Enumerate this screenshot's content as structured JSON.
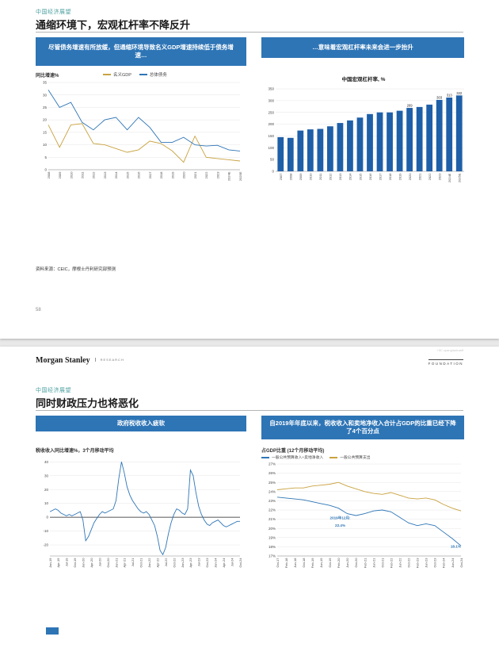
{
  "colors": {
    "banner_blue": "#2E75B6",
    "line_blue": "#2E75B6",
    "line_gold": "#C9A23F",
    "eyebrow_teal": "#4fa0a0",
    "page_bg": "#e9e9e9"
  },
  "slide1": {
    "eyebrow": "中国经济展望",
    "title": "通缩环境下，宏观杠杆率不降反升",
    "left_banner": "尽管债务增速有所放缓，但通缩环境导致名义GDP增速持续低于债务增速…",
    "right_banner": "…意味着宏观杠杆率未来会进一步抬升",
    "source": "资料来源：CEIC，摩根士丹利研究部预测",
    "page_number": "58"
  },
  "slide2": {
    "logo": "Morgan Stanley",
    "logo_sub": "RESEARCH",
    "foundation": "FOUNDATION",
    "watermark": "+5C cpanglautrasff",
    "eyebrow": "中国经济展望",
    "title": "同时财政压力也将恶化",
    "left_banner": "政府税收收入疲软",
    "right_banner": "自2019年年底以来，税收收入和卖地净收入合计占GDP的比重已经下降了4个百分点"
  },
  "chart_data": [
    {
      "id": "chart-gdp-debt",
      "type": "line",
      "title": "",
      "ylabel": "同比增速%",
      "categories": [
        "2008",
        "2009",
        "2010",
        "2011",
        "2012",
        "2013",
        "2014",
        "2015",
        "2016",
        "2017",
        "2018",
        "2019",
        "2020",
        "2021",
        "2022",
        "2023",
        "2024E",
        "2025E"
      ],
      "series": [
        {
          "name": "名义GDP",
          "color": "#C9A23F",
          "values": [
            18,
            9,
            18,
            18.5,
            10.5,
            10,
            8.5,
            7,
            8,
            11.5,
            10.5,
            7.5,
            3,
            13.5,
            5,
            4.5,
            4,
            3.5
          ]
        },
        {
          "name": "总体债务",
          "color": "#2E75B6",
          "values": [
            32,
            25,
            27,
            19,
            16,
            20,
            21,
            16,
            21,
            17,
            11,
            11,
            13,
            10,
            9.5,
            9.8,
            8,
            7.5
          ]
        }
      ],
      "ylim": [
        0,
        35
      ],
      "yticks": [
        0,
        5,
        10,
        15,
        20,
        25,
        30,
        35
      ],
      "margins": {
        "l": 16,
        "r": 4,
        "t": 6,
        "b": 26
      }
    },
    {
      "id": "chart-leverage",
      "type": "bar",
      "title": "中国宏观杠杆率, %",
      "color": "#1F5FA8",
      "categories": [
        "2007",
        "2008",
        "2009",
        "2010",
        "2011",
        "2012",
        "2013",
        "2014",
        "2015",
        "2016",
        "2017",
        "2018",
        "2019",
        "2020",
        "2021",
        "2022",
        "2023",
        "2024E",
        "2025E"
      ],
      "values": [
        145,
        142,
        173,
        178,
        180,
        191,
        205,
        216,
        228,
        243,
        250,
        250,
        257,
        269,
        273,
        283,
        303,
        313,
        322
      ],
      "value_labels": [
        {
          "i": 13,
          "t": "269"
        },
        {
          "i": 16,
          "t": "303"
        },
        {
          "i": 17,
          "t": "313"
        },
        {
          "i": 18,
          "t": "322"
        }
      ],
      "ylim": [
        0,
        350
      ],
      "yticks": [
        0,
        50,
        100,
        150,
        200,
        250,
        300,
        350
      ],
      "margins": {
        "l": 18,
        "r": 2,
        "t": 10,
        "b": 26
      }
    },
    {
      "id": "chart-tax",
      "type": "line",
      "title": "税收收入同比增速%，3个月移动平均",
      "series": [
        {
          "name": "税收收入同比增速",
          "color": "#2E75B6",
          "values": [
            4,
            5,
            6,
            5,
            3,
            2,
            1,
            2,
            1,
            2,
            3,
            4,
            -2,
            -17,
            -14,
            -9,
            -4,
            -1,
            2,
            4,
            3,
            4,
            5,
            6,
            12,
            28,
            40,
            32,
            22,
            16,
            12,
            9,
            6,
            4,
            3,
            4,
            2,
            -2,
            -6,
            -14,
            -24,
            -27,
            -22,
            -12,
            -4,
            2,
            6,
            5,
            3,
            2,
            6,
            34,
            30,
            18,
            8,
            2,
            -2,
            -5,
            -6,
            -4,
            -3,
            -2,
            -4,
            -6,
            -7,
            -6,
            -5,
            -4,
            -3,
            -3
          ]
        }
      ],
      "xlabels": [
        "Jan-19",
        "Apr-19",
        "Jul-19",
        "Oct-19",
        "Jan-20",
        "Apr-20",
        "Jul-20",
        "Oct-20",
        "Jan-21",
        "Apr-21",
        "Jul-21",
        "Oct-21",
        "Jan-22",
        "Apr-22",
        "Jul-22",
        "Oct-22",
        "Jan-23",
        "Apr-23",
        "Jul-23",
        "Oct-23",
        "Jan-24",
        "Apr-24",
        "Jul-24",
        "Oct-24"
      ],
      "xlabel_every": 3,
      "zero_line": true,
      "ylim": [
        -28,
        43
      ],
      "yticks": [
        -20,
        -10,
        0,
        10,
        20,
        30,
        40
      ],
      "margins": {
        "l": 18,
        "r": 4,
        "t": 6,
        "b": 28
      }
    },
    {
      "id": "chart-gdp-share",
      "type": "line",
      "title": "占GDP比重 (12个月移动平均)",
      "categories": [
        "Oct-17",
        "Feb-18",
        "Jun-18",
        "Oct-18",
        "Feb-19",
        "Jun-19",
        "Oct-19",
        "Feb-20",
        "Jun-20",
        "Oct-20",
        "Feb-21",
        "Jun-21",
        "Oct-21",
        "Feb-22",
        "Jun-22",
        "Oct-22",
        "Feb-23",
        "Jun-23",
        "Oct-23",
        "Feb-24",
        "Jun-24",
        "Oct-24"
      ],
      "series": [
        {
          "name": "一般公共预算收入+卖地净收入",
          "color": "#2E75B6",
          "values": [
            23.4,
            23.3,
            23.2,
            23.1,
            22.9,
            22.7,
            22.5,
            22.2,
            21.6,
            21.4,
            21.6,
            21.9,
            22.0,
            21.8,
            21.2,
            20.6,
            20.3,
            20.5,
            20.3,
            19.6,
            18.9,
            18.1
          ]
        },
        {
          "name": "一般公共预算支出",
          "color": "#C9A23F",
          "values": [
            24.2,
            24.3,
            24.4,
            24.4,
            24.6,
            24.7,
            24.8,
            25.0,
            24.6,
            24.3,
            24.0,
            23.8,
            23.7,
            23.9,
            23.6,
            23.3,
            23.2,
            23.3,
            23.1,
            22.6,
            22.2,
            21.9
          ]
        }
      ],
      "annotations": [
        {
          "xi": 7.2,
          "y": 21.0,
          "text": "2019年12月:",
          "color": "#2E75B6"
        },
        {
          "xi": 7.2,
          "y": 20.2,
          "text": "22.4%",
          "color": "#2E75B6"
        },
        {
          "xi": 20.4,
          "y": 17.9,
          "text": "18.1%",
          "color": "#2E75B6"
        }
      ],
      "ylim": [
        17,
        27
      ],
      "yticks": [
        17,
        18,
        19,
        20,
        21,
        22,
        23,
        24,
        25,
        26,
        27
      ],
      "ysuffix": "%",
      "margins": {
        "l": 20,
        "r": 6,
        "t": 4,
        "b": 28
      }
    }
  ]
}
